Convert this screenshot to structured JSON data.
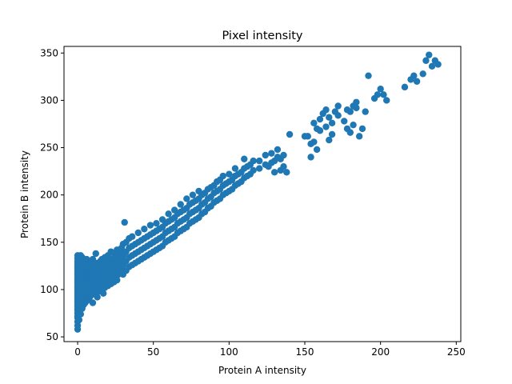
{
  "chart_data": {
    "type": "scatter",
    "title": "Pixel intensity",
    "xlabel": "Protein A intensity",
    "ylabel": "Protein B intensity",
    "xlim": [
      -9,
      253
    ],
    "ylim": [
      45,
      357
    ],
    "xticks": [
      0,
      50,
      100,
      150,
      200,
      250
    ],
    "yticks": [
      50,
      100,
      150,
      200,
      250,
      300,
      350
    ],
    "grid": false,
    "marker_color": "#1f77b4",
    "points": [
      [
        0,
        58
      ],
      [
        0,
        62
      ],
      [
        0,
        66
      ],
      [
        0,
        70
      ],
      [
        0,
        72
      ],
      [
        0,
        75
      ],
      [
        0,
        78
      ],
      [
        0,
        80
      ],
      [
        0,
        82
      ],
      [
        0,
        84
      ],
      [
        0,
        86
      ],
      [
        0,
        88
      ],
      [
        0,
        90
      ],
      [
        0,
        92
      ],
      [
        0,
        94
      ],
      [
        0,
        96
      ],
      [
        0,
        98
      ],
      [
        0,
        100
      ],
      [
        0,
        102
      ],
      [
        0,
        104
      ],
      [
        0,
        106
      ],
      [
        0,
        108
      ],
      [
        0,
        110
      ],
      [
        0,
        112
      ],
      [
        0,
        114
      ],
      [
        0,
        116
      ],
      [
        0,
        118
      ],
      [
        0,
        120
      ],
      [
        0,
        122
      ],
      [
        0,
        124
      ],
      [
        0,
        126
      ],
      [
        0,
        128
      ],
      [
        0,
        130
      ],
      [
        0,
        133
      ],
      [
        0,
        136
      ],
      [
        1,
        68
      ],
      [
        1,
        76
      ],
      [
        1,
        84
      ],
      [
        1,
        92
      ],
      [
        1,
        100
      ],
      [
        1,
        108
      ],
      [
        1,
        116
      ],
      [
        1,
        124
      ],
      [
        1,
        132
      ],
      [
        2,
        74
      ],
      [
        2,
        86
      ],
      [
        2,
        96
      ],
      [
        2,
        104
      ],
      [
        2,
        112
      ],
      [
        2,
        120
      ],
      [
        2,
        128
      ],
      [
        2,
        136
      ],
      [
        3,
        80
      ],
      [
        3,
        90
      ],
      [
        3,
        100
      ],
      [
        3,
        110
      ],
      [
        3,
        118
      ],
      [
        3,
        126
      ],
      [
        3,
        134
      ],
      [
        4,
        84
      ],
      [
        4,
        94
      ],
      [
        4,
        104
      ],
      [
        4,
        112
      ],
      [
        4,
        120
      ],
      [
        4,
        128
      ],
      [
        5,
        86
      ],
      [
        5,
        96
      ],
      [
        5,
        106
      ],
      [
        5,
        114
      ],
      [
        5,
        122
      ],
      [
        5,
        130
      ],
      [
        6,
        88
      ],
      [
        6,
        98
      ],
      [
        6,
        108
      ],
      [
        6,
        116
      ],
      [
        6,
        124
      ],
      [
        6,
        132
      ],
      [
        7,
        90
      ],
      [
        7,
        100
      ],
      [
        7,
        110
      ],
      [
        7,
        118
      ],
      [
        7,
        126
      ],
      [
        8,
        92
      ],
      [
        8,
        102
      ],
      [
        8,
        112
      ],
      [
        8,
        120
      ],
      [
        8,
        128
      ],
      [
        9,
        94
      ],
      [
        9,
        104
      ],
      [
        9,
        112
      ],
      [
        9,
        122
      ],
      [
        9,
        130
      ],
      [
        10,
        86
      ],
      [
        10,
        96
      ],
      [
        10,
        106
      ],
      [
        10,
        116
      ],
      [
        10,
        124
      ],
      [
        10,
        132
      ],
      [
        11,
        98
      ],
      [
        11,
        108
      ],
      [
        11,
        118
      ],
      [
        11,
        126
      ],
      [
        12,
        100
      ],
      [
        12,
        110
      ],
      [
        12,
        118
      ],
      [
        12,
        128
      ],
      [
        12,
        138
      ],
      [
        13,
        92
      ],
      [
        13,
        104
      ],
      [
        13,
        114
      ],
      [
        13,
        124
      ],
      [
        14,
        98
      ],
      [
        14,
        108
      ],
      [
        14,
        118
      ],
      [
        14,
        128
      ],
      [
        15,
        100
      ],
      [
        15,
        110
      ],
      [
        15,
        120
      ],
      [
        15,
        130
      ],
      [
        16,
        104
      ],
      [
        16,
        114
      ],
      [
        16,
        122
      ],
      [
        16,
        132
      ],
      [
        17,
        96
      ],
      [
        17,
        106
      ],
      [
        17,
        116
      ],
      [
        17,
        126
      ],
      [
        18,
        102
      ],
      [
        18,
        112
      ],
      [
        18,
        122
      ],
      [
        18,
        134
      ],
      [
        19,
        108
      ],
      [
        19,
        118
      ],
      [
        19,
        128
      ],
      [
        20,
        104
      ],
      [
        20,
        114
      ],
      [
        20,
        124
      ],
      [
        20,
        136
      ],
      [
        21,
        110
      ],
      [
        21,
        120
      ],
      [
        21,
        130
      ],
      [
        22,
        106
      ],
      [
        22,
        116
      ],
      [
        22,
        126
      ],
      [
        22,
        140
      ],
      [
        23,
        112
      ],
      [
        23,
        122
      ],
      [
        23,
        132
      ],
      [
        24,
        108
      ],
      [
        24,
        118
      ],
      [
        24,
        128
      ],
      [
        24,
        138
      ],
      [
        25,
        114
      ],
      [
        25,
        124
      ],
      [
        25,
        134
      ],
      [
        26,
        110
      ],
      [
        26,
        120
      ],
      [
        26,
        130
      ],
      [
        26,
        142
      ],
      [
        27,
        116
      ],
      [
        27,
        126
      ],
      [
        27,
        136
      ],
      [
        28,
        118
      ],
      [
        28,
        128
      ],
      [
        28,
        140
      ],
      [
        29,
        122
      ],
      [
        29,
        132
      ],
      [
        29,
        144
      ],
      [
        30,
        116
      ],
      [
        30,
        126
      ],
      [
        30,
        136
      ],
      [
        30,
        148
      ],
      [
        31,
        171
      ],
      [
        32,
        120
      ],
      [
        32,
        130
      ],
      [
        32,
        140
      ],
      [
        32,
        150
      ],
      [
        34,
        124
      ],
      [
        34,
        134
      ],
      [
        34,
        144
      ],
      [
        34,
        154
      ],
      [
        36,
        126
      ],
      [
        36,
        136
      ],
      [
        36,
        146
      ],
      [
        36,
        156
      ],
      [
        38,
        128
      ],
      [
        38,
        138
      ],
      [
        38,
        148
      ],
      [
        40,
        130
      ],
      [
        40,
        140
      ],
      [
        40,
        150
      ],
      [
        40,
        160
      ],
      [
        42,
        132
      ],
      [
        42,
        142
      ],
      [
        42,
        152
      ],
      [
        44,
        134
      ],
      [
        44,
        144
      ],
      [
        44,
        154
      ],
      [
        44,
        164
      ],
      [
        46,
        136
      ],
      [
        46,
        146
      ],
      [
        46,
        156
      ],
      [
        48,
        138
      ],
      [
        48,
        148
      ],
      [
        48,
        158
      ],
      [
        48,
        168
      ],
      [
        50,
        140
      ],
      [
        50,
        150
      ],
      [
        50,
        160
      ],
      [
        52,
        142
      ],
      [
        52,
        152
      ],
      [
        52,
        162
      ],
      [
        52,
        170
      ],
      [
        54,
        144
      ],
      [
        54,
        154
      ],
      [
        54,
        164
      ],
      [
        56,
        146
      ],
      [
        56,
        156
      ],
      [
        56,
        166
      ],
      [
        56,
        174
      ],
      [
        58,
        150
      ],
      [
        58,
        160
      ],
      [
        58,
        170
      ],
      [
        60,
        152
      ],
      [
        60,
        162
      ],
      [
        60,
        172
      ],
      [
        60,
        180
      ],
      [
        62,
        154
      ],
      [
        62,
        164
      ],
      [
        62,
        174
      ],
      [
        64,
        156
      ],
      [
        64,
        166
      ],
      [
        64,
        176
      ],
      [
        64,
        184
      ],
      [
        66,
        160
      ],
      [
        66,
        170
      ],
      [
        66,
        180
      ],
      [
        68,
        162
      ],
      [
        68,
        172
      ],
      [
        68,
        182
      ],
      [
        68,
        190
      ],
      [
        70,
        164
      ],
      [
        70,
        174
      ],
      [
        70,
        184
      ],
      [
        72,
        166
      ],
      [
        72,
        176
      ],
      [
        72,
        186
      ],
      [
        72,
        196
      ],
      [
        74,
        170
      ],
      [
        74,
        180
      ],
      [
        74,
        190
      ],
      [
        76,
        172
      ],
      [
        76,
        182
      ],
      [
        76,
        192
      ],
      [
        76,
        200
      ],
      [
        78,
        174
      ],
      [
        78,
        184
      ],
      [
        78,
        194
      ],
      [
        80,
        176
      ],
      [
        80,
        186
      ],
      [
        80,
        196
      ],
      [
        80,
        204
      ],
      [
        82,
        180
      ],
      [
        82,
        190
      ],
      [
        82,
        200
      ],
      [
        84,
        182
      ],
      [
        84,
        192
      ],
      [
        84,
        202
      ],
      [
        86,
        186
      ],
      [
        86,
        196
      ],
      [
        86,
        206
      ],
      [
        88,
        188
      ],
      [
        88,
        198
      ],
      [
        88,
        208
      ],
      [
        90,
        192
      ],
      [
        90,
        202
      ],
      [
        90,
        210
      ],
      [
        92,
        194
      ],
      [
        92,
        204
      ],
      [
        92,
        214
      ],
      [
        94,
        196
      ],
      [
        94,
        206
      ],
      [
        94,
        216
      ],
      [
        96,
        200
      ],
      [
        96,
        210
      ],
      [
        96,
        220
      ],
      [
        98,
        202
      ],
      [
        98,
        212
      ],
      [
        100,
        204
      ],
      [
        100,
        214
      ],
      [
        100,
        222
      ],
      [
        102,
        206
      ],
      [
        102,
        216
      ],
      [
        104,
        210
      ],
      [
        104,
        220
      ],
      [
        104,
        228
      ],
      [
        106,
        212
      ],
      [
        106,
        222
      ],
      [
        108,
        214
      ],
      [
        108,
        224
      ],
      [
        110,
        218
      ],
      [
        110,
        228
      ],
      [
        110,
        238
      ],
      [
        112,
        220
      ],
      [
        112,
        230
      ],
      [
        114,
        222
      ],
      [
        114,
        232
      ],
      [
        116,
        226
      ],
      [
        116,
        236
      ],
      [
        120,
        228
      ],
      [
        120,
        236
      ],
      [
        124,
        232
      ],
      [
        124,
        242
      ],
      [
        126,
        230
      ],
      [
        128,
        234
      ],
      [
        128,
        244
      ],
      [
        130,
        224
      ],
      [
        130,
        236
      ],
      [
        132,
        240
      ],
      [
        132,
        248
      ],
      [
        134,
        226
      ],
      [
        134,
        238
      ],
      [
        136,
        230
      ],
      [
        136,
        242
      ],
      [
        138,
        224
      ],
      [
        140,
        264
      ],
      [
        150,
        262
      ],
      [
        152,
        262
      ],
      [
        154,
        254
      ],
      [
        154,
        240
      ],
      [
        156,
        256
      ],
      [
        156,
        276
      ],
      [
        158,
        248
      ],
      [
        158,
        270
      ],
      [
        160,
        280
      ],
      [
        160,
        268
      ],
      [
        162,
        286
      ],
      [
        164,
        290
      ],
      [
        164,
        272
      ],
      [
        166,
        258
      ],
      [
        166,
        282
      ],
      [
        168,
        264
      ],
      [
        168,
        276
      ],
      [
        170,
        288
      ],
      [
        172,
        284
      ],
      [
        172,
        294
      ],
      [
        176,
        278
      ],
      [
        178,
        290
      ],
      [
        178,
        270
      ],
      [
        180,
        288
      ],
      [
        180,
        266
      ],
      [
        182,
        294
      ],
      [
        182,
        274
      ],
      [
        184,
        292
      ],
      [
        184,
        298
      ],
      [
        186,
        262
      ],
      [
        188,
        270
      ],
      [
        190,
        288
      ],
      [
        192,
        326
      ],
      [
        196,
        302
      ],
      [
        198,
        306
      ],
      [
        200,
        312
      ],
      [
        202,
        306
      ],
      [
        204,
        300
      ],
      [
        216,
        314
      ],
      [
        220,
        322
      ],
      [
        222,
        326
      ],
      [
        224,
        320
      ],
      [
        228,
        328
      ],
      [
        230,
        342
      ],
      [
        232,
        348
      ],
      [
        234,
        336
      ],
      [
        236,
        342
      ],
      [
        238,
        338
      ]
    ]
  }
}
